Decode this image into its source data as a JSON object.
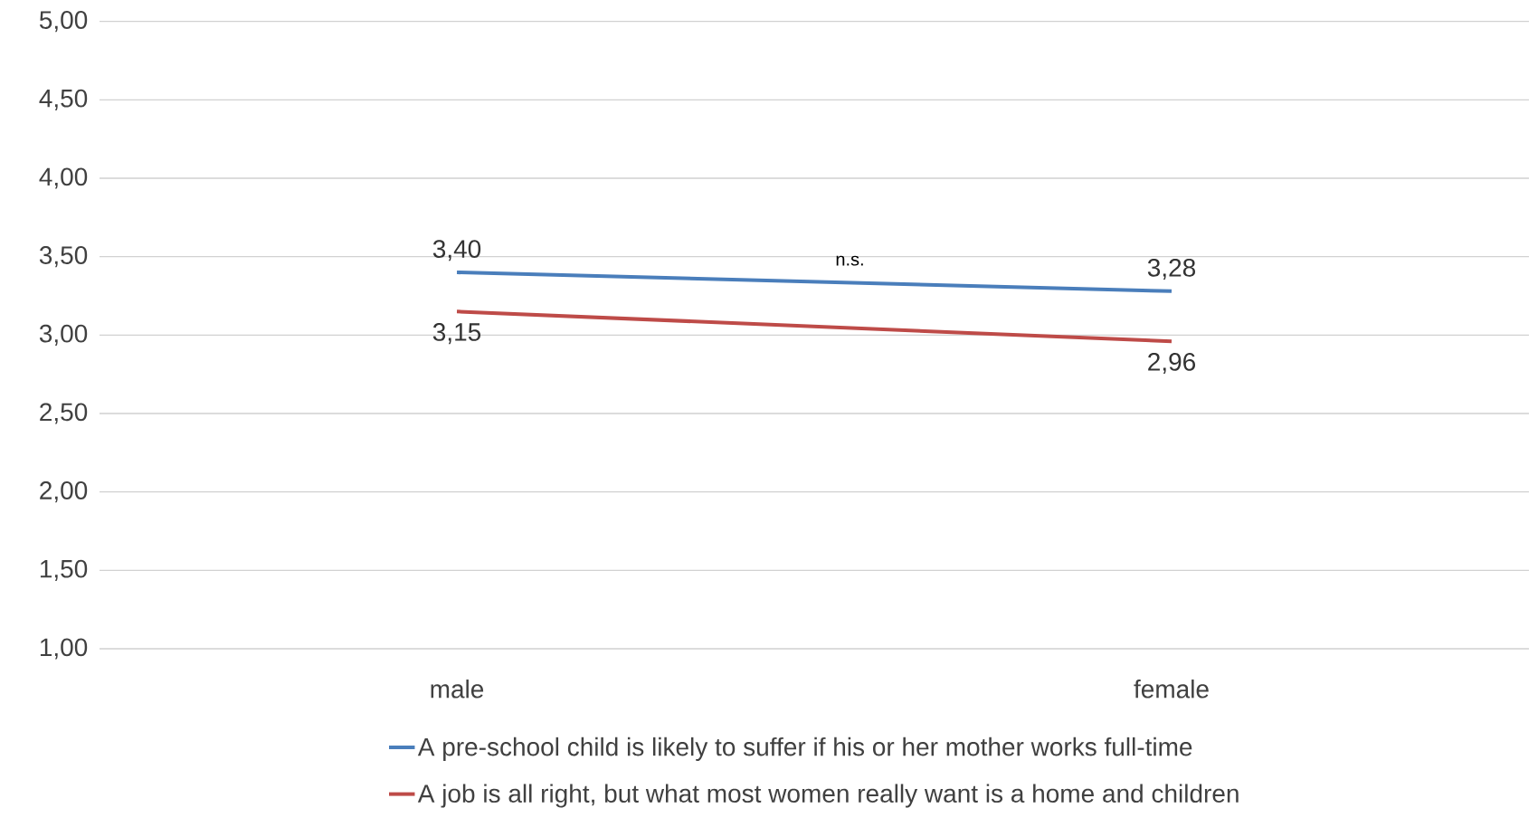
{
  "chart_data": {
    "type": "line",
    "categories": [
      "male",
      "female"
    ],
    "series": [
      {
        "name": "A pre-school child is likely to suffer if his or her mother works full-time",
        "color": "#4a7ebb",
        "values": [
          3.4,
          3.28
        ],
        "value_labels": [
          "3,40",
          "3,28"
        ]
      },
      {
        "name": "A job is all right, but what most women really want is a home and children",
        "color": "#be4b48",
        "values": [
          3.15,
          2.96
        ],
        "value_labels": [
          "3,15",
          "2,96"
        ]
      }
    ],
    "ylim": [
      1,
      5
    ],
    "yticks": [
      {
        "value": 1,
        "label": "1,00"
      },
      {
        "value": 1.5,
        "label": "1,50"
      },
      {
        "value": 2,
        "label": "2,00"
      },
      {
        "value": 2.5,
        "label": "2,50"
      },
      {
        "value": 3,
        "label": "3,00"
      },
      {
        "value": 3.5,
        "label": "3,50"
      },
      {
        "value": 4,
        "label": "4,00"
      },
      {
        "value": 4.5,
        "label": "4,50"
      },
      {
        "value": 5,
        "label": "5,00"
      }
    ],
    "grid": "y",
    "legend": "bottom",
    "marker": "none",
    "line_style": "solid",
    "annotations": [
      "n.s."
    ]
  }
}
